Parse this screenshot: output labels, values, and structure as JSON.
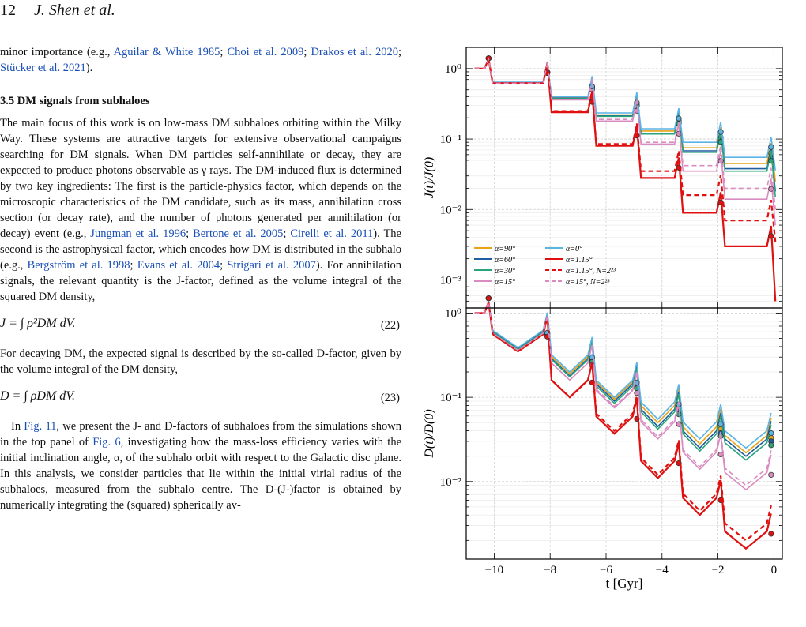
{
  "header": {
    "page_number": "12",
    "authors": "J. Shen et al."
  },
  "text": {
    "p1_a": "minor importance (e.g., ",
    "p1_c1": "Aguilar & White 1985",
    "p1_s1": "; ",
    "p1_c2": "Choi et al. 2009",
    "p1_s2": "; ",
    "p1_c3": "Drakos et al. 2020",
    "p1_s3": "; ",
    "p1_c4": "Stücker et al. 2021",
    "p1_b": ").",
    "section_title": "3.5  DM signals from subhaloes",
    "p2_a": "The main focus of this work is on low-mass DM subhaloes orbiting within the Milky Way. These systems are attractive targets for extensive observational campaigns searching for DM signals. When DM particles self-annihilate or decay, they are expected to produce photons observable as γ rays. The DM-induced flux is determined by two key ingredients: The first is the particle-physics factor, which depends on the microscopic characteristics of the DM candidate, such as its mass, annihilation cross section (or decay rate), and the number of photons generated per annihilation (or decay) event (e.g., ",
    "p2_c1": "Jungman et al. 1996",
    "p2_s1": "; ",
    "p2_c2": "Bertone et al. 2005",
    "p2_s2": "; ",
    "p2_c3": "Cirelli et al. 2011",
    "p2_b": "). The second is the astrophysical factor, which encodes how DM is distributed in the subhalo (e.g., ",
    "p2_c4": "Bergström et al. 1998",
    "p2_s3": "; ",
    "p2_c5": "Evans et al. 2004",
    "p2_s4": "; ",
    "p2_c6": "Strigari et al. 2007",
    "p2_c": "). For annihilation signals, the relevant quantity is the J-factor, defined as the volume integral of the squared DM density,",
    "eq22_lhs": "J = ∫ ρ²DM dV.",
    "eq22_num": "(22)",
    "p3": "For decaying DM, the expected signal is described by the so-called D-factor, given by the volume integral of the DM density,",
    "eq23_lhs": "D = ∫ ρDM dV.",
    "eq23_num": "(23)",
    "p4_a": "In ",
    "p4_r1": "Fig. 11",
    "p4_b": ", we present the J- and D-factors of subhaloes from the simulations shown in the top panel of ",
    "p4_r2": "Fig. 6",
    "p4_c": ", investigating how the mass-loss efficiency varies with the initial inclination angle, α, of the subhalo orbit with respect to the Galactic disc plane. In this analysis, we consider particles that lie within the initial virial radius of the subhaloes, measured from the subhalo centre. The D-(J-)factor is obtained by numerically integrating the (squared) spherically av-"
  },
  "chart_data": [
    {
      "type": "line",
      "panel": "top",
      "ylabel": "J(t)/J(0)",
      "xlabel": "t [Gyr]",
      "yscale": "log",
      "ylim": [
        0.0004,
        2.0
      ],
      "xlim": [
        -11,
        0.3
      ],
      "x_ticks": [
        -10,
        -8,
        -6,
        -4,
        -2,
        0
      ],
      "y_ticks": [
        "10⁰",
        "10⁻¹",
        "10⁻²",
        "10⁻³"
      ],
      "grid": true,
      "legend": "bottom-left",
      "pericentres": [
        -10.2,
        -8.1,
        -6.5,
        -4.9,
        -3.4,
        -1.9,
        -0.1
      ],
      "series": [
        {
          "name": "α=90°",
          "color": "#e8a317",
          "dash": "solid",
          "levels": [
            1.0,
            0.63,
            0.39,
            0.22,
            0.13,
            0.075,
            0.045,
            0.025
          ]
        },
        {
          "name": "α=60°",
          "color": "#1f5fa0",
          "dash": "solid",
          "levels": [
            1.0,
            0.63,
            0.38,
            0.215,
            0.12,
            0.068,
            0.038,
            0.018
          ]
        },
        {
          "name": "α=30°",
          "color": "#2aa57a",
          "dash": "solid",
          "levels": [
            1.0,
            0.62,
            0.375,
            0.21,
            0.118,
            0.065,
            0.035,
            0.015
          ]
        },
        {
          "name": "α=15°",
          "color": "#d98cc0",
          "dash": "solid",
          "levels": [
            1.0,
            0.62,
            0.36,
            0.18,
            0.085,
            0.035,
            0.014,
            0.006
          ]
        },
        {
          "name": "α=0°",
          "color": "#5ab4e5",
          "dash": "solid",
          "levels": [
            1.0,
            0.64,
            0.4,
            0.235,
            0.14,
            0.09,
            0.055,
            0.036
          ]
        },
        {
          "name": "α=1.15°",
          "color": "#e01010",
          "dash": "solid",
          "levels": [
            1.0,
            0.62,
            0.24,
            0.08,
            0.028,
            0.009,
            0.003,
            0.0005
          ]
        },
        {
          "name": "α=1.15°, N=2²³",
          "color": "#e01010",
          "dash": "dashed",
          "levels": [
            1.0,
            0.62,
            0.25,
            0.085,
            0.035,
            0.016,
            0.007,
            0.0035
          ]
        },
        {
          "name": "α=15°, N=2²³",
          "color": "#d98cc0",
          "dash": "dashed",
          "levels": [
            1.0,
            0.62,
            0.365,
            0.19,
            0.09,
            0.042,
            0.02,
            0.01
          ]
        }
      ]
    },
    {
      "type": "line",
      "panel": "bottom",
      "ylabel": "D(t)/D(0)",
      "xlabel": "t [Gyr]",
      "yscale": "log",
      "ylim": [
        0.0012,
        1.15
      ],
      "xlim": [
        -11,
        0.3
      ],
      "x_ticks": [
        -10,
        -8,
        -6,
        -4,
        -2,
        0
      ],
      "y_ticks": [
        "10⁰",
        "10⁻¹",
        "10⁻²"
      ],
      "grid": true,
      "series": [
        {
          "name": "α=90°",
          "color": "#e8a317",
          "dash": "solid",
          "levels": [
            1.0,
            0.38,
            0.19,
            0.095,
            0.05,
            0.028,
            0.022
          ]
        },
        {
          "name": "α=60°",
          "color": "#1f5fa0",
          "dash": "solid",
          "levels": [
            1.0,
            0.38,
            0.18,
            0.09,
            0.045,
            0.025,
            0.02
          ]
        },
        {
          "name": "α=30°",
          "color": "#2aa57a",
          "dash": "solid",
          "levels": [
            1.0,
            0.37,
            0.175,
            0.085,
            0.042,
            0.023,
            0.018
          ]
        },
        {
          "name": "α=15°",
          "color": "#d98cc0",
          "dash": "solid",
          "levels": [
            1.0,
            0.36,
            0.16,
            0.075,
            0.032,
            0.014,
            0.008
          ]
        },
        {
          "name": "α=0°",
          "color": "#5ab4e5",
          "dash": "solid",
          "levels": [
            1.0,
            0.39,
            0.2,
            0.1,
            0.055,
            0.032,
            0.025
          ]
        },
        {
          "name": "α=1.15°",
          "color": "#e01010",
          "dash": "solid",
          "levels": [
            1.0,
            0.35,
            0.1,
            0.037,
            0.011,
            0.004,
            0.0016
          ]
        },
        {
          "name": "α=1.15°, N=2²³",
          "color": "#e01010",
          "dash": "dashed",
          "levels": [
            1.0,
            0.35,
            0.1,
            0.04,
            0.012,
            0.0045,
            0.002
          ]
        },
        {
          "name": "α=15°, N=2²³",
          "color": "#d98cc0",
          "dash": "dashed",
          "levels": [
            1.0,
            0.36,
            0.16,
            0.078,
            0.034,
            0.015,
            0.009
          ]
        }
      ]
    }
  ]
}
